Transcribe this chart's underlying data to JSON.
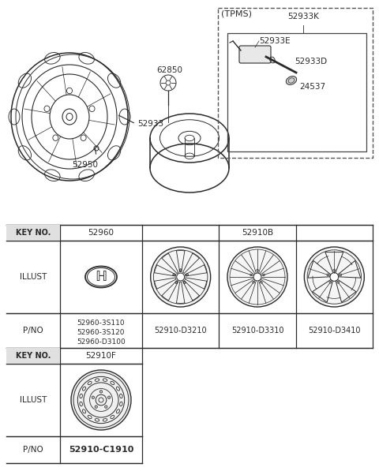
{
  "bg_color": "#ffffff",
  "line_color": "#2a2a2a",
  "upper": {
    "tpms_label": "(TPMS)",
    "tpms_inner_label": "52933K",
    "label_52933E": "52933E",
    "label_52933D": "52933D",
    "label_24537": "24537",
    "label_62850": "62850",
    "label_52933": "52933",
    "label_52950": "52950"
  },
  "table": {
    "keyno1": "KEY NO.",
    "keyno1_val": "52960",
    "keyno2_span": "52910B",
    "illust": "ILLUST",
    "pno": "P/NO",
    "keyno2": "KEY NO.",
    "keyno2_val": "52910F",
    "pno1_lines": [
      "52960-3S110",
      "52960-3S120",
      "52960-D3100"
    ],
    "pno_d3210": "52910-D3210",
    "pno_d3310": "52910-D3310",
    "pno_d3410": "52910-D3410",
    "pno_c1910": "52910-C1910"
  }
}
